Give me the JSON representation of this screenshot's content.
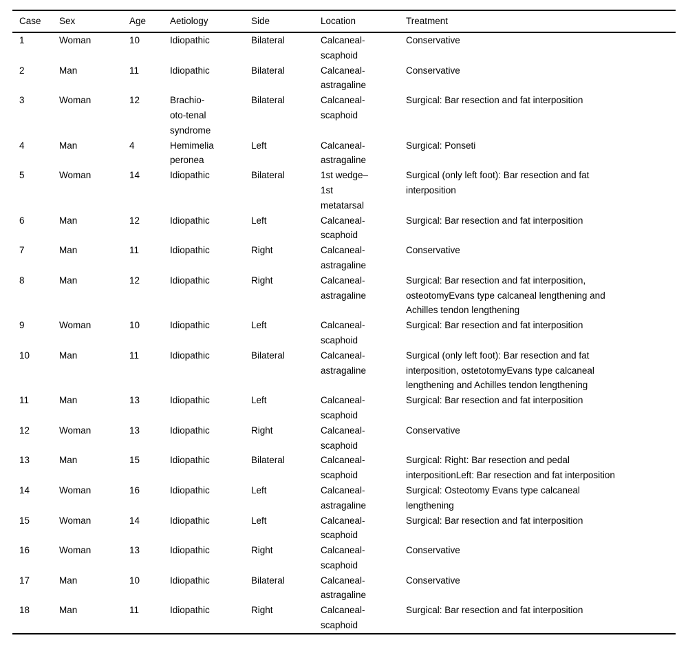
{
  "table": {
    "columns": [
      "Case",
      "Sex",
      "Age",
      "Aetiology",
      "Side",
      "Location",
      "Treatment"
    ],
    "rows": [
      [
        "1",
        "Woman",
        "10",
        "Idiopathic",
        "Bilateral",
        "Calcaneal-scaphoid",
        "Conservative"
      ],
      [
        "2",
        "Man",
        "11",
        "Idiopathic",
        "Bilateral",
        "Calcaneal-astragaline",
        "Conservative"
      ],
      [
        "3",
        "Woman",
        "12",
        "Brachio-oto-tenal syndrome",
        "Bilateral",
        "Calcaneal-scaphoid",
        "Surgical: Bar resection and fat interposition"
      ],
      [
        "4",
        "Man",
        "4",
        "Hemimelia peronea",
        "Left",
        "Calcaneal-astragaline",
        "Surgical: Ponseti"
      ],
      [
        "5",
        "Woman",
        "14",
        "Idiopathic",
        "Bilateral",
        "1st wedge–1st metatarsal",
        "Surgical (only left foot): Bar resection and fat interposition"
      ],
      [
        "6",
        "Man",
        "12",
        "Idiopathic",
        "Left",
        "Calcaneal-scaphoid",
        "Surgical: Bar resection and fat interposition"
      ],
      [
        "7",
        "Man",
        "11",
        "Idiopathic",
        "Right",
        "Calcaneal-astragaline",
        "Conservative"
      ],
      [
        "8",
        "Man",
        "12",
        "Idiopathic",
        "Right",
        "Calcaneal-astragaline",
        "Surgical: Bar resection and fat interposition, osteotomyEvans type calcaneal lengthening and Achilles tendon lengthening"
      ],
      [
        "9",
        "Woman",
        "10",
        "Idiopathic",
        "Left",
        "Calcaneal-scaphoid",
        "Surgical: Bar resection and fat interposition"
      ],
      [
        "10",
        "Man",
        "11",
        "Idiopathic",
        "Bilateral",
        "Calcaneal-astragaline",
        "Surgical (only left foot): Bar resection and fat interposition, ostetotomyEvans type calcaneal lengthening and Achilles tendon lengthening"
      ],
      [
        "11",
        "Man",
        "13",
        "Idiopathic",
        "Left",
        "Calcaneal-scaphoid",
        "Surgical: Bar resection and fat interposition"
      ],
      [
        "12",
        "Woman",
        "13",
        "Idiopathic",
        "Right",
        "Calcaneal-scaphoid",
        "Conservative"
      ],
      [
        "13",
        "Man",
        "15",
        "Idiopathic",
        "Bilateral",
        "Calcaneal-scaphoid",
        "Surgical: Right: Bar resection and pedal interpositionLeft: Bar resection and fat interposition"
      ],
      [
        "14",
        "Woman",
        "16",
        "Idiopathic",
        "Left",
        "Calcaneal-astragaline",
        "Surgical: Osteotomy Evans type calcaneal lengthening"
      ],
      [
        "15",
        "Woman",
        "14",
        "Idiopathic",
        "Left",
        "Calcaneal-scaphoid",
        "Surgical: Bar resection and fat interposition"
      ],
      [
        "16",
        "Woman",
        "13",
        "Idiopathic",
        "Right",
        "Calcaneal-scaphoid",
        "Conservative"
      ],
      [
        "17",
        "Man",
        "10",
        "Idiopathic",
        "Bilateral",
        "Calcaneal-astragaline",
        "Conservative"
      ],
      [
        "18",
        "Man",
        "11",
        "Idiopathic",
        "Right",
        "Calcaneal-scaphoid",
        "Surgical: Bar resection and fat interposition"
      ]
    ],
    "column_keys": [
      "case",
      "sex",
      "age",
      "aetiology",
      "side",
      "location",
      "treatment"
    ]
  }
}
